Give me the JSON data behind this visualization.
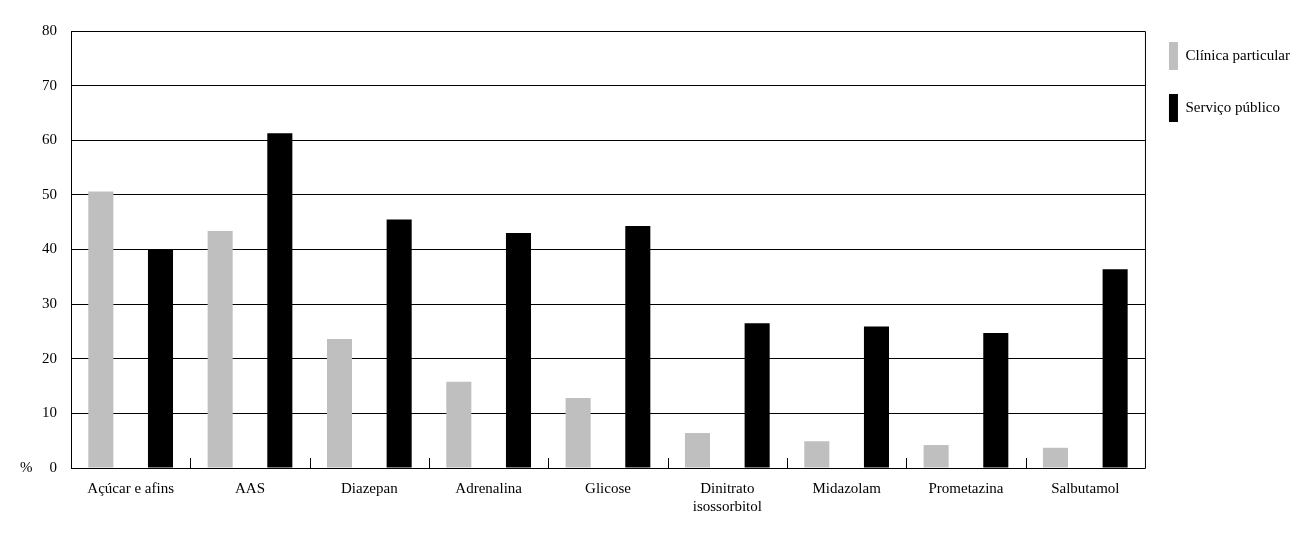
{
  "chart_data": {
    "type": "bar",
    "ylabel": "%",
    "categories": [
      "Açúcar e afins",
      "AAS",
      "Diazepan",
      "Adrenalina",
      "Glicose",
      "Dinitrato isossorbitol",
      "Midazolam",
      "Prometazina",
      "Salbutamol"
    ],
    "series": [
      {
        "name": "Clínica particular",
        "color": "#bfbfbf",
        "values": [
          50.6,
          43.4,
          23.6,
          15.8,
          12.8,
          6.4,
          4.9,
          4.2,
          3.7
        ]
      },
      {
        "name": "Serviço público",
        "color": "#000000",
        "values": [
          40.1,
          61.3,
          45.5,
          43.0,
          44.3,
          26.5,
          25.9,
          24.7,
          36.4
        ]
      }
    ],
    "ylim": [
      0,
      80
    ],
    "yticks": [
      0,
      10,
      20,
      30,
      40,
      50,
      60,
      70,
      80
    ],
    "grid": "y",
    "legend": "top right"
  }
}
